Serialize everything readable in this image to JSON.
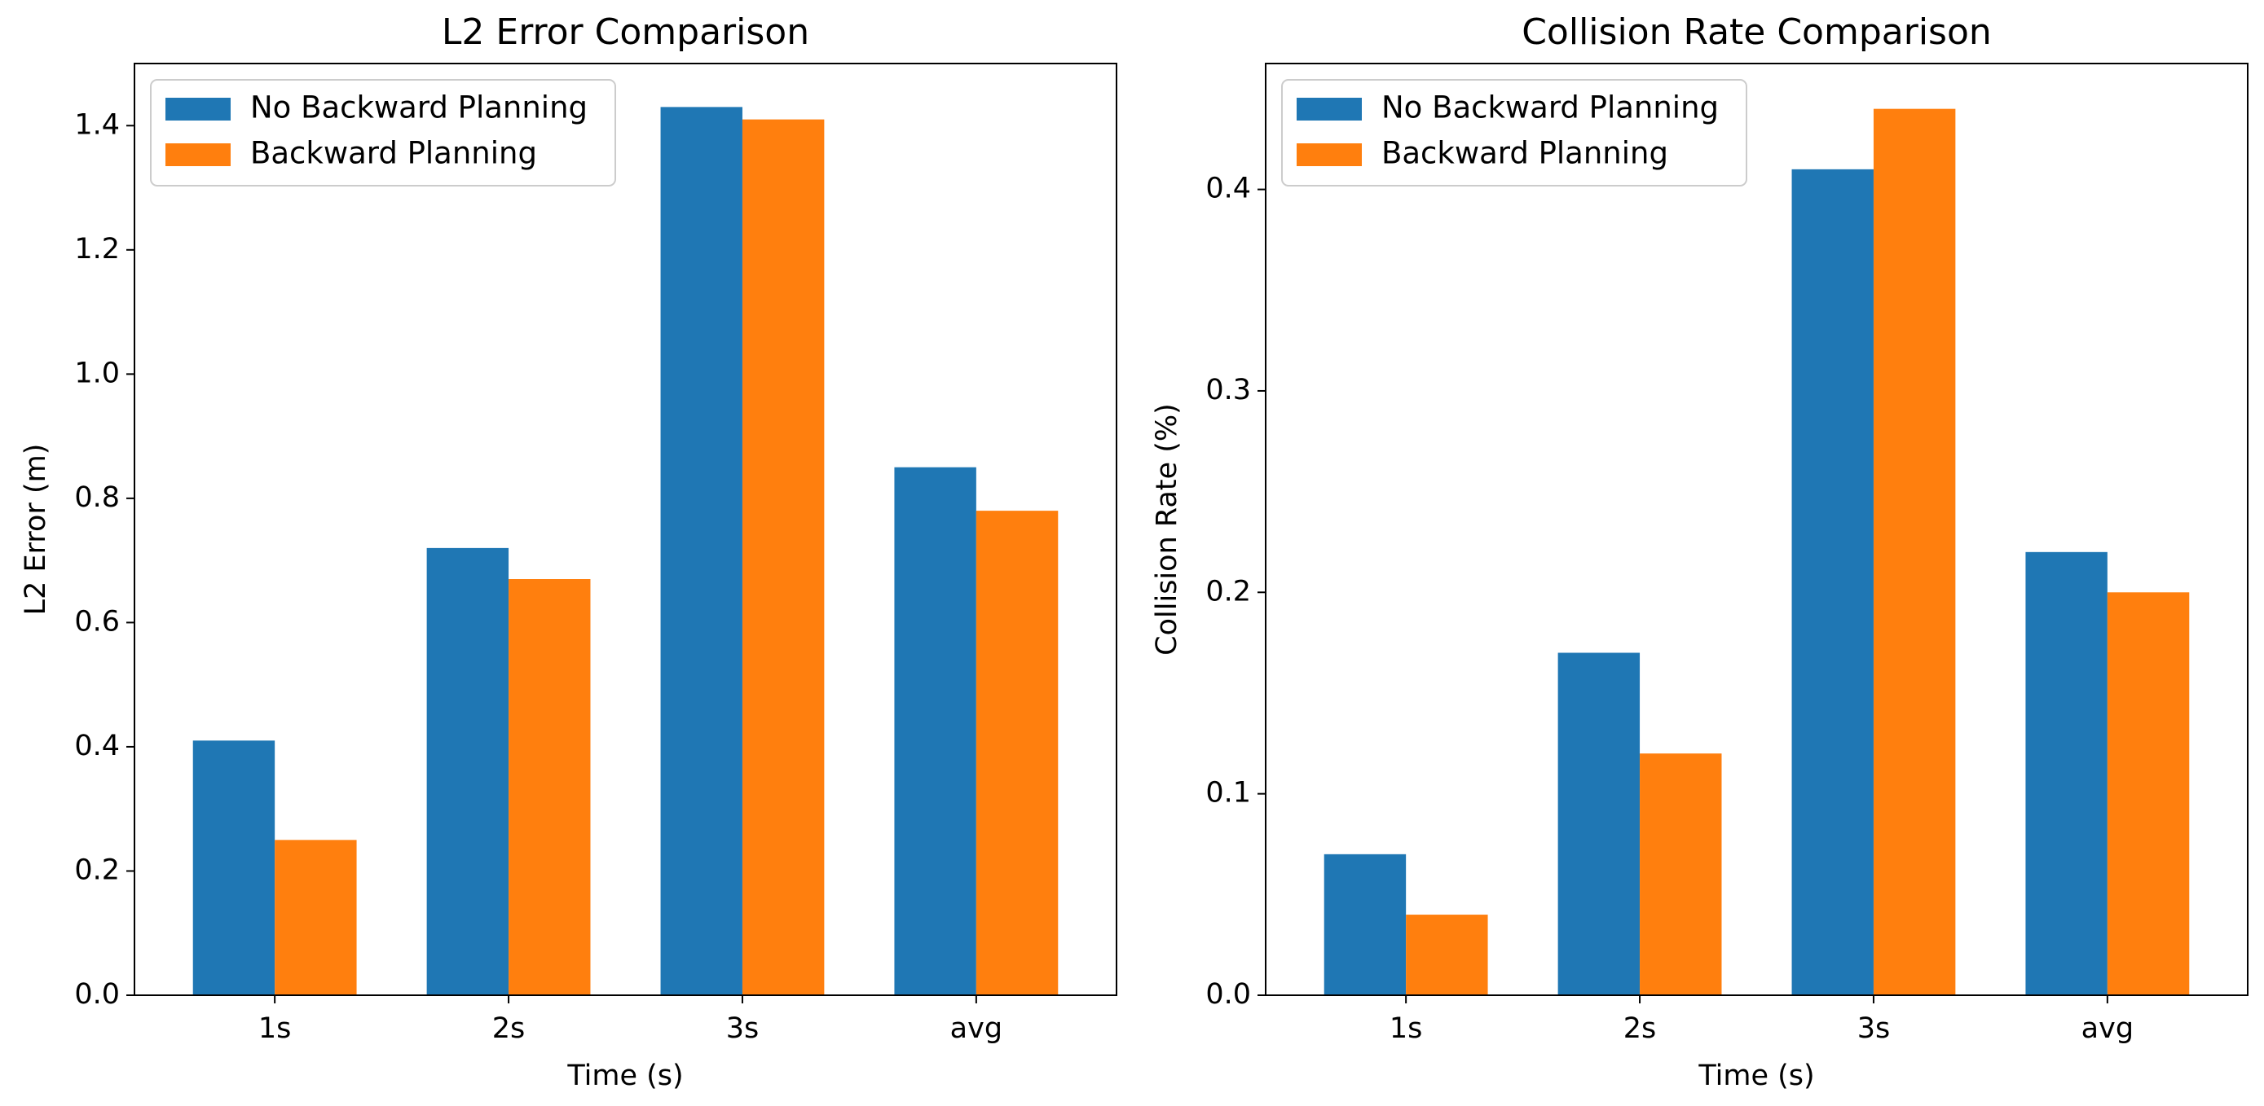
{
  "chart_data": [
    {
      "type": "bar",
      "title": "L2 Error Comparison",
      "xlabel": "Time (s)",
      "ylabel": "L2 Error (m)",
      "categories": [
        "1s",
        "2s",
        "3s",
        "avg"
      ],
      "series": [
        {
          "name": "No Backward Planning",
          "color": "#1f77b4",
          "values": [
            0.41,
            0.72,
            1.43,
            0.85
          ]
        },
        {
          "name": "Backward Planning",
          "color": "#ff7f0e",
          "values": [
            0.25,
            0.67,
            1.41,
            0.78
          ]
        }
      ],
      "ylim": [
        0,
        1.5
      ],
      "yticks": [
        0.0,
        0.2,
        0.4,
        0.6,
        0.8,
        1.0,
        1.2,
        1.4
      ],
      "ytick_labels": [
        "0.0",
        "0.2",
        "0.4",
        "0.6",
        "0.8",
        "1.0",
        "1.2",
        "1.4"
      ],
      "legend_position": "top-left",
      "grid": false
    },
    {
      "type": "bar",
      "title": "Collision Rate Comparison",
      "xlabel": "Time (s)",
      "ylabel": "Collision Rate (%)",
      "categories": [
        "1s",
        "2s",
        "3s",
        "avg"
      ],
      "series": [
        {
          "name": "No Backward Planning",
          "color": "#1f77b4",
          "values": [
            0.07,
            0.17,
            0.41,
            0.22
          ]
        },
        {
          "name": "Backward Planning",
          "color": "#ff7f0e",
          "values": [
            0.04,
            0.12,
            0.44,
            0.2
          ]
        }
      ],
      "ylim": [
        0,
        0.4625
      ],
      "yticks": [
        0.0,
        0.1,
        0.2,
        0.3,
        0.4
      ],
      "ytick_labels": [
        "0.0",
        "0.1",
        "0.2",
        "0.3",
        "0.4"
      ],
      "legend_position": "top-left",
      "grid": false
    }
  ]
}
